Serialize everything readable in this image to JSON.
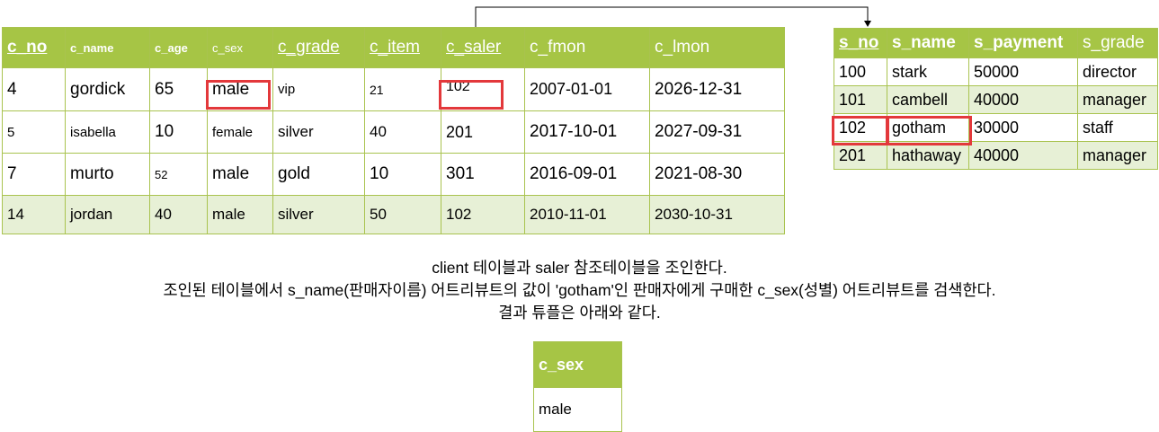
{
  "client_table": {
    "headers": [
      "c_no",
      "c_name",
      "c_age",
      "c_sex",
      "c_grade",
      "c_item",
      "c_saler",
      "c_fmon",
      "c_lmon"
    ],
    "rows": [
      [
        "4",
        "gordick",
        "65",
        "male",
        "vip",
        "21",
        "102",
        "2007-01-01",
        "2026-12-31"
      ],
      [
        "5",
        "isabella",
        "10",
        "female",
        "silver",
        "40",
        "201",
        "2017-10-01",
        "2027-09-31"
      ],
      [
        "7",
        "murto",
        "52",
        "male",
        "gold",
        "10",
        "301",
        "2016-09-01",
        "2021-08-30"
      ],
      [
        "14",
        "jordan",
        "40",
        "male",
        "silver",
        "50",
        "102",
        "2010-11-01",
        "2030-10-31"
      ]
    ]
  },
  "saler_table": {
    "headers": [
      "s_no",
      "s_name",
      "s_payment",
      "s_grade"
    ],
    "rows": [
      [
        "100",
        "stark",
        "50000",
        "director"
      ],
      [
        "101",
        "cambell",
        "40000",
        "manager"
      ],
      [
        "102",
        "gotham",
        "30000",
        "staff"
      ],
      [
        "201",
        "hathaway",
        "40000",
        "manager"
      ]
    ]
  },
  "description": {
    "line1": "client 테이블과 saler 참조테이블을 조인한다.",
    "line2": "조인된 테이블에서 s_name(판매자이름) 어트리뷰트의 값이 'gotham'인 판매자에게 구매한 c_sex(성별) 어트리뷰트를 검색한다.",
    "line3": "결과 튜플은 아래와 같다."
  },
  "result_table": {
    "header": "c_sex",
    "value": "male"
  },
  "colors": {
    "header_bg": "#a6c545",
    "alt_row_bg": "#e7f0d6",
    "border": "#a9c34f",
    "highlight": "#e3383b"
  }
}
